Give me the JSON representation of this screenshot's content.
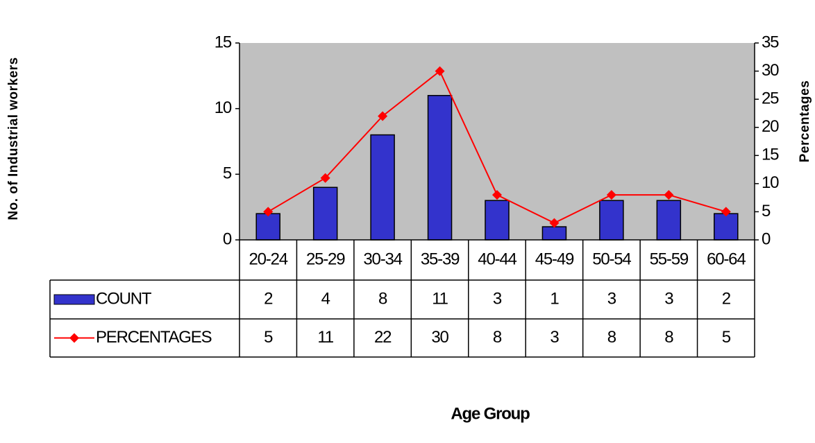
{
  "chart_data": {
    "type": "bar",
    "y_title": "No. of Industrial workers",
    "y2_title": "Percentages",
    "x_title": "Age Group",
    "categories": [
      "20-24",
      "25-29",
      "30-34",
      "35-39",
      "40-44",
      "45-49",
      "50-54",
      "55-59",
      "60-64"
    ],
    "series": [
      {
        "name": "COUNT",
        "type": "bar",
        "color": "#3333cc",
        "values": [
          2,
          4,
          8,
          11,
          3,
          1,
          3,
          3,
          2
        ]
      },
      {
        "name": "PERCENTAGES",
        "type": "line",
        "axis": "y2",
        "color": "#ff0000",
        "values": [
          5,
          11,
          22,
          30,
          8,
          3,
          8,
          8,
          5
        ]
      }
    ],
    "ylim": [
      0,
      15
    ],
    "yticks": [
      0,
      5,
      10,
      15
    ],
    "y2lim": [
      0,
      35
    ],
    "y2ticks": [
      0,
      5,
      10,
      15,
      20,
      25,
      30,
      35
    ],
    "plot_background": "#c0c0c0",
    "data_table": true
  }
}
